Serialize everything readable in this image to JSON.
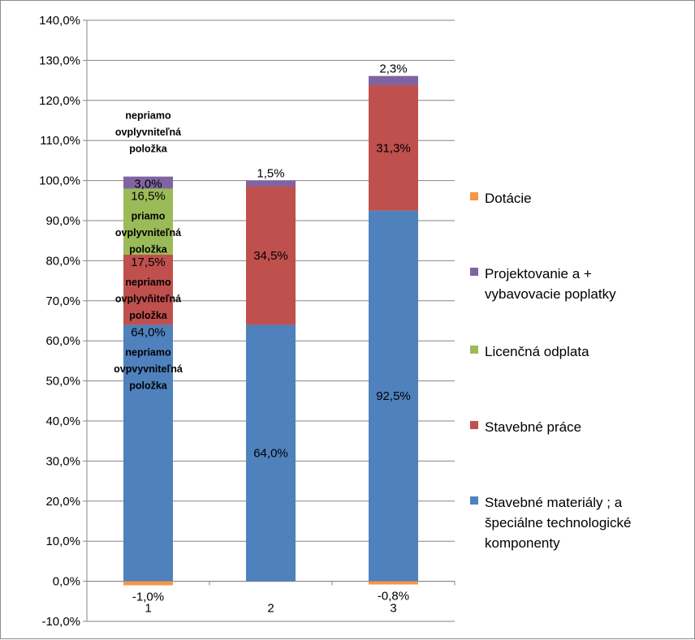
{
  "chart_data": {
    "type": "bar",
    "stacked": true,
    "title": "",
    "xlabel": "",
    "ylabel": "",
    "ylim": [
      -10,
      140
    ],
    "ytick_step": 10,
    "categories": [
      "1",
      "2",
      "3"
    ],
    "series": [
      {
        "name": "Stavebné materiály ; a\nšpeciálne technologické\nkomponenty",
        "color": "#4f81bd",
        "values": [
          64.0,
          64.0,
          92.5
        ],
        "labels": [
          "64,0%",
          "64,0%",
          "92,5%"
        ]
      },
      {
        "name": "Stavebné práce",
        "color": "#c0504d",
        "values": [
          17.5,
          34.5,
          31.3
        ],
        "labels": [
          "17,5%",
          "34,5%",
          "31,3%"
        ]
      },
      {
        "name": "Licenčná odplata",
        "color": "#9bbb59",
        "values": [
          16.5,
          0,
          0
        ],
        "labels": [
          "16,5%",
          "",
          ""
        ]
      },
      {
        "name": "Projektovanie a +\nvybavovacie poplatky",
        "color": "#8064a2",
        "values": [
          3.0,
          1.5,
          2.3
        ],
        "labels": [
          "3,0%",
          "1,5%",
          "2,3%"
        ]
      },
      {
        "name": "Dotácie",
        "color": "#f79646",
        "values": [
          -1.0,
          0,
          -0.8
        ],
        "labels": [
          "-1,0%",
          "",
          "-0,8%"
        ]
      }
    ],
    "legend_order": [
      4,
      3,
      2,
      1,
      0
    ],
    "legend_position": "right",
    "annotations": [
      {
        "text": "nepriamo\novplyvniteľná\npoložka",
        "category": "1",
        "series": "Projektovanie a +\nvybavovacie poplatky",
        "placement": "above"
      },
      {
        "text": "priamo\novplyvniteľná\npoložka",
        "category": "1",
        "series": "Licenčná odplata",
        "placement": "inside"
      },
      {
        "text": "nepriamo\novplyvňiteľná\npoložka",
        "category": "1",
        "series": "Stavebné práce",
        "placement": "inside"
      },
      {
        "text": "nepriamo\novpvyvniteľná\npoložka",
        "category": "1",
        "series": "Stavebné materiály ; a\nšpeciálne technologické\nkomponenty",
        "placement": "inside"
      }
    ]
  }
}
